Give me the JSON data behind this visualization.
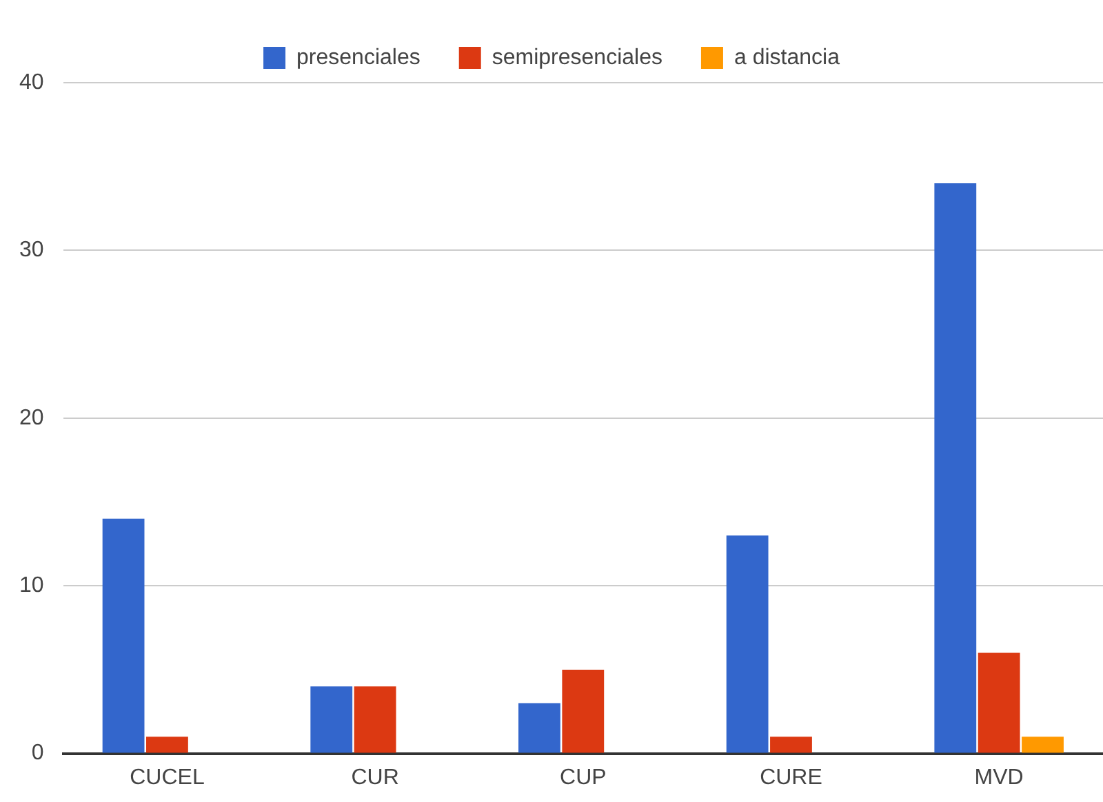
{
  "chart_data": {
    "type": "bar",
    "categories": [
      "CUCEL",
      "CUR",
      "CUP",
      "CURE",
      "MVD"
    ],
    "series": [
      {
        "name": "presenciales",
        "color": "#3366cc",
        "values": [
          14,
          4,
          3,
          13,
          34
        ]
      },
      {
        "name": "semipresenciales",
        "color": "#dc3912",
        "values": [
          1,
          4,
          5,
          1,
          6
        ]
      },
      {
        "name": "a distancia",
        "color": "#ff9900",
        "values": [
          0,
          0,
          0,
          0,
          1
        ]
      }
    ],
    "ylim": [
      0,
      40
    ],
    "yticks": [
      0,
      10,
      20,
      30,
      40
    ],
    "grid": "y",
    "legend": "top"
  }
}
